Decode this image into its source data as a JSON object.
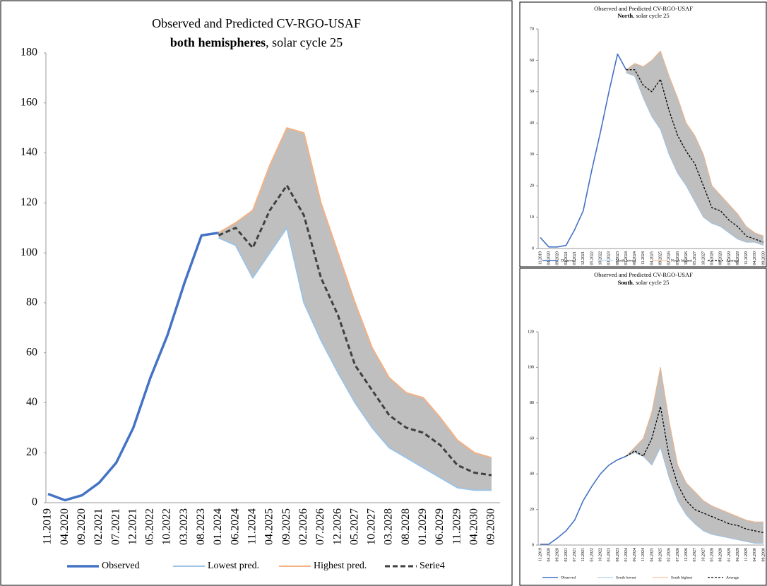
{
  "chart_data": [
    {
      "type": "line",
      "title": "Observed and Predicted CV-RGO-USAF",
      "subtitle_bold": "both hemispheres",
      "subtitle_rest": ", solar cycle 25",
      "categories": [
        "11.2019",
        "04.2020",
        "09.2020",
        "02.2021",
        "07.2021",
        "12.2021",
        "05.2022",
        "10.2022",
        "03.2023",
        "08.2023",
        "01.2024",
        "06.2024",
        "11.2024",
        "04.2025",
        "09.2025",
        "02.2026",
        "07.2026",
        "12.2026",
        "05.2027",
        "10.2027",
        "03.2028",
        "08.2028",
        "01.2029",
        "06.2029",
        "11.2029",
        "04.2030",
        "09.2030"
      ],
      "ylim": [
        0,
        180
      ],
      "yticks": [
        0,
        20,
        40,
        60,
        80,
        100,
        120,
        140,
        160,
        180
      ],
      "grid": false,
      "band_color": "#bfbfbf",
      "series": [
        {
          "name": "Observed",
          "color": "#4472c4",
          "values": [
            3.5,
            1,
            3,
            8,
            16,
            30,
            50,
            67,
            88,
            107,
            108,
            null,
            null,
            null,
            null,
            null,
            null,
            null,
            null,
            null,
            null,
            null,
            null,
            null,
            null,
            null,
            null
          ]
        },
        {
          "name": "Lowest pred.",
          "color": "#9dc3e6",
          "values": [
            null,
            null,
            null,
            null,
            null,
            null,
            null,
            null,
            null,
            null,
            106,
            103,
            90,
            100,
            110,
            80,
            65,
            52,
            40,
            30,
            22,
            18,
            14,
            10,
            6,
            5,
            5
          ]
        },
        {
          "name": "Highest pred.",
          "color": "#f4b183",
          "values": [
            null,
            null,
            null,
            null,
            null,
            null,
            null,
            null,
            null,
            null,
            108,
            112,
            117,
            135,
            150,
            148,
            120,
            100,
            80,
            62,
            50,
            44,
            42,
            34,
            25,
            20,
            18
          ]
        },
        {
          "name": "Serie4",
          "color": "#404040",
          "dashed": true,
          "values": [
            null,
            null,
            null,
            null,
            null,
            null,
            null,
            null,
            null,
            null,
            107,
            110,
            102,
            117,
            127,
            115,
            90,
            75,
            55,
            45,
            35,
            30,
            28,
            23,
            15,
            12,
            11
          ]
        }
      ]
    },
    {
      "type": "line",
      "title": "Observed and Predicted CV-RGO-USAF",
      "subtitle_bold": "North",
      "subtitle_rest": ", solar cycle 25",
      "categories": [
        "11.2019",
        "04.2020",
        "09.2020",
        "02.2021",
        "07.2021",
        "12.2021",
        "05.2022",
        "10.2022",
        "03.2023",
        "08.2023",
        "01.2024",
        "06.2024",
        "11.2024",
        "04.2025",
        "09.2025",
        "02.2026",
        "07.2026",
        "12.2026",
        "05.2027",
        "10.2027",
        "03.2028",
        "08.2028",
        "01.2029",
        "06.2029",
        "11.2029",
        "04.2030",
        "09.2030"
      ],
      "ylim": [
        0,
        70
      ],
      "yticks": [
        0,
        10,
        20,
        30,
        40,
        50,
        60,
        70
      ],
      "grid": false,
      "band_color": "#bfbfbf",
      "series": [
        {
          "name": "Observed",
          "color": "#4472c4",
          "values": [
            3.5,
            0.5,
            0.5,
            1,
            6,
            12,
            25,
            37,
            50,
            62,
            57,
            null,
            null,
            null,
            null,
            null,
            null,
            null,
            null,
            null,
            null,
            null,
            null,
            null,
            null,
            null,
            null
          ]
        },
        {
          "name": "North lowest",
          "color": "#9dc3e6",
          "values": [
            null,
            null,
            null,
            null,
            null,
            null,
            null,
            null,
            null,
            null,
            56,
            55,
            48,
            42,
            38,
            30,
            24,
            20,
            15,
            10,
            8,
            7,
            5,
            3,
            2,
            2,
            1
          ]
        },
        {
          "name": "North highest",
          "color": "#f4b183",
          "values": [
            null,
            null,
            null,
            null,
            null,
            null,
            null,
            null,
            null,
            null,
            57,
            59,
            58,
            60,
            63,
            55,
            48,
            40,
            36,
            30,
            20,
            17,
            14,
            11,
            7,
            5,
            4
          ]
        },
        {
          "name": "Average",
          "color": "#000000",
          "dashed": true,
          "values": [
            null,
            null,
            null,
            null,
            null,
            null,
            null,
            null,
            null,
            null,
            57,
            57,
            52,
            50,
            54,
            44,
            36,
            31,
            27,
            20,
            13,
            12,
            9,
            7,
            4,
            3,
            2
          ]
        }
      ]
    },
    {
      "type": "line",
      "title": "Observed and Predicted CV-RGO-USAF",
      "subtitle_bold": "South",
      "subtitle_rest": ", solar cycle 25",
      "categories": [
        "11.2019",
        "04.2020",
        "09.2020",
        "02.2021",
        "07.2021",
        "12.2021",
        "05.2022",
        "10.2022",
        "03.2023",
        "08.2023",
        "01.2024",
        "06.2024",
        "11.2024",
        "04.2025",
        "09.2025",
        "02.2026",
        "07.2026",
        "12.2026",
        "05.2027",
        "10.2027",
        "03.2028",
        "08.2028",
        "01.2029",
        "06.2029",
        "11.2029",
        "04.2030",
        "09.2030"
      ],
      "ylim": [
        0,
        120
      ],
      "yticks": [
        0,
        20,
        40,
        60,
        80,
        100,
        120
      ],
      "grid": false,
      "band_color": "#bfbfbf",
      "series": [
        {
          "name": "Observed",
          "color": "#4472c4",
          "values": [
            0.5,
            0.5,
            4,
            8,
            14,
            25,
            33,
            40,
            45,
            48,
            50,
            null,
            null,
            null,
            null,
            null,
            null,
            null,
            null,
            null,
            null,
            null,
            null,
            null,
            null,
            null,
            null
          ]
        },
        {
          "name": "South lowest",
          "color": "#9dc3e6",
          "values": [
            null,
            null,
            null,
            null,
            null,
            null,
            null,
            null,
            null,
            null,
            50,
            52,
            50,
            45,
            55,
            38,
            25,
            17,
            12,
            8,
            6,
            5,
            4,
            3,
            2,
            1,
            1
          ]
        },
        {
          "name": "South highest",
          "color": "#f4b183",
          "values": [
            null,
            null,
            null,
            null,
            null,
            null,
            null,
            null,
            null,
            null,
            50,
            55,
            60,
            75,
            100,
            70,
            45,
            35,
            30,
            25,
            22,
            20,
            18,
            16,
            14,
            13,
            13
          ]
        },
        {
          "name": "Average",
          "color": "#000000",
          "dashed": true,
          "values": [
            null,
            null,
            null,
            null,
            null,
            null,
            null,
            null,
            null,
            null,
            50,
            53,
            50,
            60,
            78,
            50,
            34,
            25,
            20,
            18,
            16,
            14,
            12,
            11,
            9,
            8,
            7
          ]
        }
      ]
    }
  ]
}
